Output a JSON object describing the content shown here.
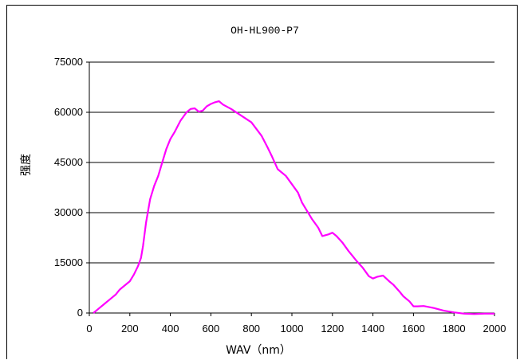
{
  "chart_data": {
    "type": "line",
    "title": "OH-HL900-P7",
    "xlabel": "WAV（nm）",
    "ylabel": "强度",
    "xlim": [
      0,
      2000
    ],
    "ylim": [
      0,
      75000
    ],
    "x_ticks": [
      "0",
      "200",
      "400",
      "600",
      "800",
      "1000",
      "1200",
      "1400",
      "1600",
      "1800",
      "2000"
    ],
    "y_ticks": [
      "0",
      "15000",
      "30000",
      "45000",
      "60000",
      "75000"
    ],
    "grid": "horizontal",
    "legend": "none",
    "series": [
      {
        "color": "#ff00ff",
        "x": [
          20,
          50,
          80,
          100,
          130,
          150,
          170,
          200,
          220,
          240,
          255,
          265,
          280,
          300,
          320,
          340,
          360,
          380,
          400,
          420,
          450,
          480,
          500,
          520,
          540,
          560,
          580,
          600,
          620,
          640,
          660,
          700,
          750,
          800,
          850,
          880,
          900,
          930,
          950,
          970,
          1000,
          1030,
          1050,
          1080,
          1100,
          1130,
          1150,
          1180,
          1200,
          1220,
          1250,
          1280,
          1300,
          1320,
          1350,
          1380,
          1400,
          1420,
          1450,
          1480,
          1500,
          1530,
          1550,
          1580,
          1600,
          1620,
          1650,
          1700,
          1750,
          1800,
          1850,
          1900,
          1950,
          2000
        ],
        "y": [
          0,
          1500,
          3000,
          4000,
          5500,
          7000,
          8000,
          9500,
          11500,
          14000,
          16500,
          20000,
          27000,
          34000,
          38000,
          41000,
          45000,
          49000,
          52000,
          54000,
          57500,
          60000,
          61000,
          61200,
          60200,
          60500,
          61800,
          62500,
          63000,
          63300,
          62300,
          61000,
          59000,
          57000,
          53000,
          49500,
          47000,
          43000,
          42000,
          41000,
          38500,
          36000,
          33000,
          30000,
          28000,
          25500,
          23000,
          23500,
          24000,
          23000,
          21000,
          18500,
          17000,
          15500,
          13500,
          11000,
          10300,
          10800,
          11200,
          9500,
          8500,
          6500,
          5000,
          3500,
          2000,
          2000,
          2100,
          1500,
          700,
          200,
          -200,
          -300,
          -200,
          -200
        ]
      }
    ]
  }
}
